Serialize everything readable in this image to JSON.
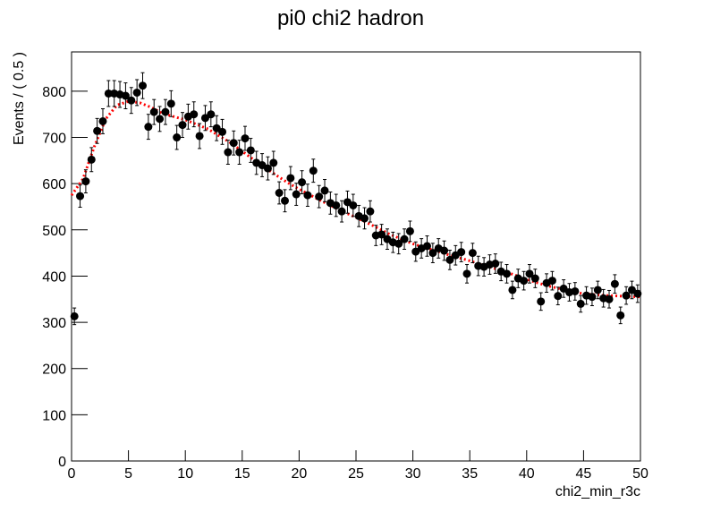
{
  "chart_data": {
    "type": "errorbar_scatter",
    "title": "pi0 chi2 hadron",
    "x_label": "chi2_min_r3c",
    "y_label": "Events / ( 0.5 )",
    "xlim": [
      0,
      50
    ],
    "ylim": [
      0,
      885
    ],
    "xticks": [
      0,
      5,
      10,
      15,
      20,
      25,
      30,
      35,
      40,
      45,
      50
    ],
    "yticks": [
      0,
      100,
      200,
      300,
      400,
      500,
      600,
      700,
      800
    ],
    "color": "#000000",
    "x": [
      0.25,
      0.75,
      1.25,
      1.75,
      2.25,
      2.75,
      3.25,
      3.75,
      4.25,
      4.75,
      5.25,
      5.75,
      6.25,
      6.75,
      7.25,
      7.75,
      8.25,
      8.75,
      9.25,
      9.75,
      10.25,
      10.75,
      11.25,
      11.75,
      12.25,
      12.75,
      13.25,
      13.75,
      14.25,
      14.75,
      15.25,
      15.75,
      16.25,
      16.75,
      17.25,
      17.75,
      18.25,
      18.75,
      19.25,
      19.75,
      20.25,
      20.75,
      21.25,
      21.75,
      22.25,
      22.75,
      23.25,
      23.75,
      24.25,
      24.75,
      25.25,
      25.75,
      26.25,
      26.75,
      27.25,
      27.75,
      28.25,
      28.75,
      29.25,
      29.75,
      30.25,
      30.75,
      31.25,
      31.75,
      32.25,
      32.75,
      33.25,
      33.75,
      34.25,
      34.75,
      35.25,
      35.75,
      36.25,
      36.75,
      37.25,
      37.75,
      38.25,
      38.75,
      39.25,
      39.75,
      40.25,
      40.75,
      41.25,
      41.75,
      42.25,
      42.75,
      43.25,
      43.75,
      44.25,
      44.75,
      45.25,
      45.75,
      46.25,
      46.75,
      47.25,
      47.75,
      48.25,
      48.75,
      49.25,
      49.75
    ],
    "values": [
      313,
      573,
      605,
      652,
      714,
      735,
      795,
      795,
      793,
      790,
      780,
      797,
      812,
      723,
      755,
      740,
      755,
      773,
      700,
      727,
      745,
      750,
      703,
      742,
      750,
      720,
      712,
      668,
      688,
      668,
      698,
      672,
      645,
      640,
      633,
      645,
      580,
      563,
      612,
      577,
      603,
      575,
      628,
      572,
      585,
      558,
      553,
      540,
      560,
      553,
      530,
      525,
      540,
      488,
      490,
      480,
      473,
      470,
      480,
      497,
      453,
      460,
      465,
      450,
      460,
      455,
      435,
      445,
      452,
      405,
      450,
      422,
      420,
      425,
      427,
      410,
      405,
      370,
      395,
      390,
      405,
      395,
      345,
      385,
      390,
      357,
      373,
      365,
      367,
      340,
      358,
      355,
      370,
      352,
      350,
      383,
      315,
      358,
      370,
      362
    ],
    "errors": [
      18,
      24,
      25,
      26,
      27,
      27,
      28,
      28,
      28,
      28,
      28,
      28,
      28,
      27,
      27,
      27,
      27,
      28,
      26,
      27,
      27,
      27,
      27,
      27,
      27,
      27,
      27,
      26,
      26,
      26,
      26,
      26,
      25,
      25,
      25,
      25,
      24,
      24,
      25,
      24,
      25,
      24,
      25,
      24,
      24,
      24,
      24,
      23,
      24,
      24,
      23,
      23,
      23,
      22,
      22,
      22,
      22,
      22,
      22,
      22,
      21,
      21,
      22,
      21,
      21,
      21,
      21,
      21,
      21,
      20,
      21,
      21,
      20,
      21,
      21,
      20,
      20,
      19,
      20,
      20,
      20,
      20,
      19,
      20,
      20,
      19,
      19,
      19,
      19,
      18,
      19,
      19,
      19,
      19,
      19,
      20,
      18,
      19,
      19,
      19
    ],
    "fit": {
      "color": "#ff0000",
      "x": [
        0,
        1,
        2,
        3,
        4,
        5,
        6,
        7,
        8,
        9,
        10,
        11,
        12,
        13,
        14,
        15,
        16,
        17,
        18,
        19,
        20,
        21,
        22,
        23,
        24,
        25,
        26,
        27,
        28,
        29,
        30,
        31,
        32,
        33,
        34,
        35,
        36,
        37,
        38,
        39,
        40,
        41,
        42,
        43,
        44,
        45,
        46,
        47,
        48,
        49,
        50
      ],
      "values": [
        575,
        610,
        680,
        740,
        770,
        778,
        775,
        765,
        752,
        745,
        738,
        728,
        718,
        703,
        688,
        670,
        652,
        635,
        618,
        602,
        588,
        575,
        562,
        550,
        538,
        527,
        515,
        503,
        490,
        480,
        470,
        462,
        455,
        447,
        440,
        433,
        425,
        418,
        410,
        402,
        393,
        385,
        378,
        372,
        366,
        362,
        360,
        358,
        357,
        356,
        355
      ]
    }
  }
}
